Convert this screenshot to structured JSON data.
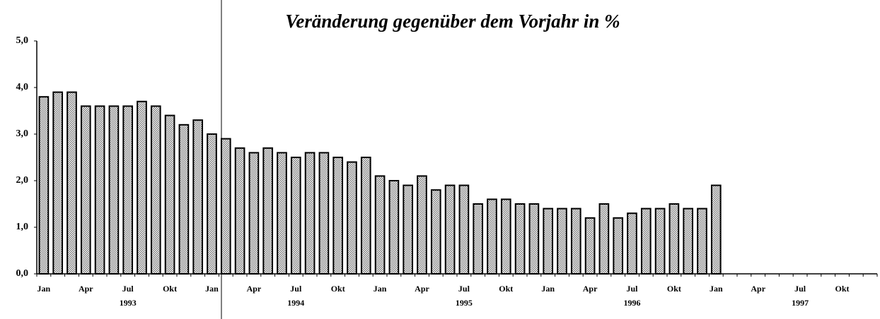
{
  "chart_data": {
    "type": "bar",
    "title": "Veränderung gegenüber dem Vorjahr in %",
    "categories": [
      "Jan",
      null,
      null,
      "Apr",
      null,
      null,
      "Jul",
      null,
      null,
      "Okt",
      null,
      null,
      "Jan",
      null,
      null,
      "Apr",
      null,
      null,
      "Jul",
      null,
      null,
      "Okt",
      null,
      null,
      "Jan",
      null,
      null,
      "Apr",
      null,
      null,
      "Jul",
      null,
      null,
      "Okt",
      null,
      null,
      "Jan",
      null,
      null,
      "Apr",
      null,
      null,
      "Jul",
      null,
      null,
      "Okt",
      null,
      null,
      "Jan",
      null,
      null,
      "Apr",
      null,
      null,
      "Jul",
      null,
      null,
      "Okt",
      null,
      null
    ],
    "years": [
      "1993",
      "1994",
      "1995",
      "1996",
      "1997"
    ],
    "values": [
      3.8,
      3.9,
      3.9,
      3.6,
      3.6,
      3.6,
      3.6,
      3.7,
      3.6,
      3.4,
      3.2,
      3.3,
      3.0,
      2.9,
      2.7,
      2.6,
      2.7,
      2.6,
      2.5,
      2.6,
      2.6,
      2.5,
      2.4,
      2.5,
      2.1,
      2.0,
      1.9,
      2.1,
      1.8,
      1.9,
      1.9,
      1.5,
      1.6,
      1.6,
      1.5,
      1.5,
      1.4,
      1.4,
      1.4,
      1.2,
      1.5,
      1.2,
      1.3,
      1.4,
      1.4,
      1.5,
      1.4,
      1.4,
      1.9,
      null,
      null,
      null,
      null,
      null,
      null,
      null,
      null,
      null,
      null,
      null
    ],
    "color": "#000000",
    "ylim": [
      0,
      5
    ],
    "yticks": [
      {
        "value": 0,
        "label": "0,0"
      },
      {
        "value": 1,
        "label": "1,0"
      },
      {
        "value": 2,
        "label": "2,0"
      },
      {
        "value": 3,
        "label": "3,0"
      },
      {
        "value": 4,
        "label": "4,0"
      },
      {
        "value": 5,
        "label": "5,0"
      }
    ],
    "grid": false
  }
}
